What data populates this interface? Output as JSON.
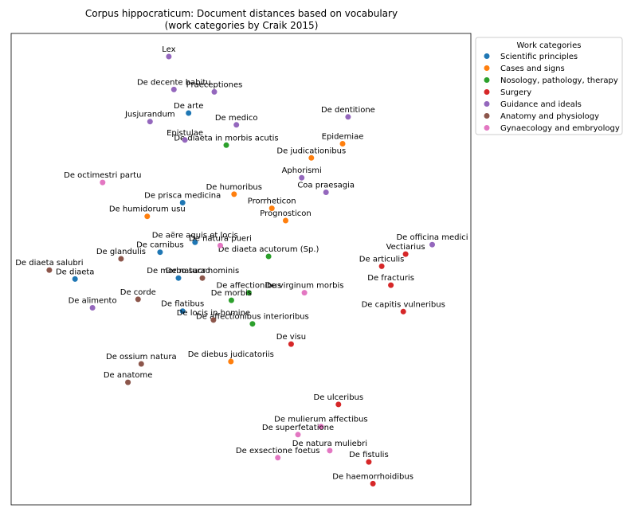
{
  "chart_data": {
    "type": "scatter",
    "title": "Corpus hippocraticum: Document distances based on vocabulary",
    "subtitle": "(work categories by Craik 2015)",
    "xlabel": "",
    "ylabel": "",
    "xlim": [
      0,
      100
    ],
    "ylim": [
      0,
      100
    ],
    "grid": false,
    "legend_position": "outside-top-right",
    "legend_title": "Work categories",
    "series": [
      {
        "name": "Scientific principles",
        "color": "#1f77b4",
        "points": [
          {
            "label": "De arte",
            "x": 38.6,
            "y": 83.1
          },
          {
            "label": "De prisca medicina",
            "x": 37.3,
            "y": 64.1
          },
          {
            "label": "De aëre aquis et locis",
            "x": 40.0,
            "y": 55.7
          },
          {
            "label": "De carnibus",
            "x": 32.4,
            "y": 53.6
          },
          {
            "label": "De diaeta",
            "x": 13.9,
            "y": 47.9
          },
          {
            "label": "De morbo sacro",
            "x": 36.4,
            "y": 48.1
          },
          {
            "label": "De flatibus",
            "x": 37.3,
            "y": 41.1
          }
        ]
      },
      {
        "name": "Cases and signs",
        "color": "#ff7f0e",
        "points": [
          {
            "label": "Epidemiae",
            "x": 72.1,
            "y": 76.6
          },
          {
            "label": "De judicationibus",
            "x": 65.3,
            "y": 73.6
          },
          {
            "label": "De humoribus",
            "x": 48.5,
            "y": 65.9
          },
          {
            "label": "Prorrheticon",
            "x": 56.7,
            "y": 62.9
          },
          {
            "label": "Prognosticon",
            "x": 59.7,
            "y": 60.3
          },
          {
            "label": "De humidorum usu",
            "x": 29.6,
            "y": 61.2
          },
          {
            "label": "De diebus judicatoriis",
            "x": 47.8,
            "y": 30.4
          }
        ]
      },
      {
        "name": "Nosology, pathology, therapy",
        "color": "#2ca02c",
        "points": [
          {
            "label": "De diaeta in morbis acutis",
            "x": 46.8,
            "y": 76.3
          },
          {
            "label": "De diaeta acutorum (Sp.)",
            "x": 56.0,
            "y": 52.7
          },
          {
            "label": "De affectionibus",
            "x": 51.7,
            "y": 45.0
          },
          {
            "label": "De morbis",
            "x": 47.9,
            "y": 43.4
          },
          {
            "label": "De affectionibus interioribus",
            "x": 52.5,
            "y": 38.4
          }
        ]
      },
      {
        "name": "Surgery",
        "color": "#d62728",
        "points": [
          {
            "label": "Vectiarius",
            "x": 85.8,
            "y": 53.2
          },
          {
            "label": "De articulis",
            "x": 80.6,
            "y": 50.6
          },
          {
            "label": "De fracturis",
            "x": 82.6,
            "y": 46.6
          },
          {
            "label": "De capitis vulneribus",
            "x": 85.3,
            "y": 41.0
          },
          {
            "label": "De visu",
            "x": 60.9,
            "y": 34.1
          },
          {
            "label": "De ulceribus",
            "x": 71.2,
            "y": 21.3
          },
          {
            "label": "De fistulis",
            "x": 77.8,
            "y": 9.1
          },
          {
            "label": "De haemorrhoidibus",
            "x": 78.7,
            "y": 4.5
          }
        ]
      },
      {
        "name": "Guidance and ideals",
        "color": "#9467bd",
        "points": [
          {
            "label": "Lex",
            "x": 34.3,
            "y": 95.1
          },
          {
            "label": "De decente habitu",
            "x": 35.4,
            "y": 88.1
          },
          {
            "label": "Praeceptiones",
            "x": 44.2,
            "y": 87.6
          },
          {
            "label": "Jusjurandum",
            "x": 30.2,
            "y": 81.3
          },
          {
            "label": "De medico",
            "x": 49.0,
            "y": 80.6
          },
          {
            "label": "Epistulae",
            "x": 37.8,
            "y": 77.4
          },
          {
            "label": "De dentitione",
            "x": 73.3,
            "y": 82.3
          },
          {
            "label": "Aphorismi",
            "x": 63.2,
            "y": 69.4
          },
          {
            "label": "Coa praesagia",
            "x": 68.5,
            "y": 66.3
          },
          {
            "label": "De officina medici",
            "x": 91.6,
            "y": 55.2
          },
          {
            "label": "De alimento",
            "x": 17.7,
            "y": 41.8
          }
        ]
      },
      {
        "name": "Anatomy and physiology",
        "color": "#8c564b",
        "points": [
          {
            "label": "De glandulis",
            "x": 23.9,
            "y": 52.2
          },
          {
            "label": "De diaeta salubri",
            "x": 8.3,
            "y": 49.8
          },
          {
            "label": "De natura hominis",
            "x": 41.6,
            "y": 48.1
          },
          {
            "label": "De corde",
            "x": 27.6,
            "y": 43.6
          },
          {
            "label": "De locis in homine",
            "x": 44.0,
            "y": 39.2
          },
          {
            "label": "De ossium natura",
            "x": 28.3,
            "y": 29.9
          },
          {
            "label": "De anatome",
            "x": 25.4,
            "y": 26.0
          }
        ]
      },
      {
        "name": "Gynaecology and embryology",
        "color": "#e377c2",
        "points": [
          {
            "label": "De octimestri partu",
            "x": 19.9,
            "y": 68.4
          },
          {
            "label": "De natura pueri",
            "x": 45.5,
            "y": 55.0
          },
          {
            "label": "De virginum morbis",
            "x": 63.8,
            "y": 45.0
          },
          {
            "label": "De mulierum affectibus",
            "x": 67.4,
            "y": 16.6
          },
          {
            "label": "De superfetatione",
            "x": 62.4,
            "y": 14.9
          },
          {
            "label": "De natura muliebri",
            "x": 69.3,
            "y": 11.5
          },
          {
            "label": "De exsectione foetus",
            "x": 58.0,
            "y": 10.0
          }
        ]
      }
    ]
  }
}
